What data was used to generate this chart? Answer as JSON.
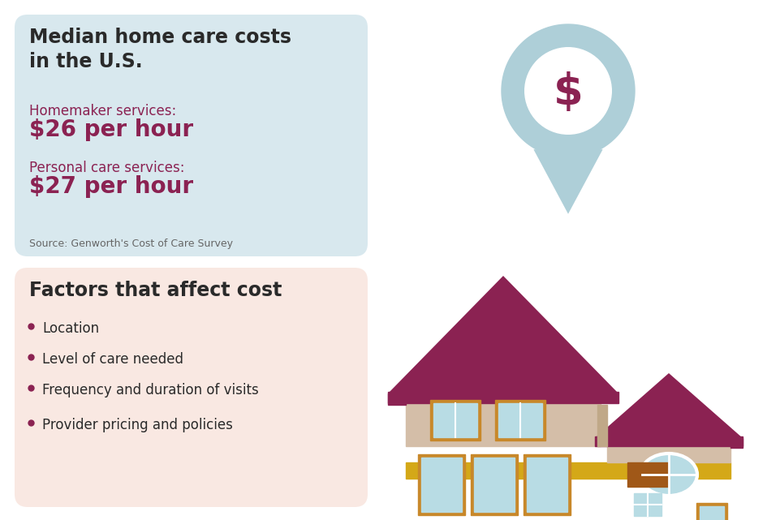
{
  "bg_color": "#ffffff",
  "top_box_color": "#d8e8ee",
  "bottom_box_color": "#f9e8e2",
  "title_text": "Median home care costs\nin the U.S.",
  "title_color": "#2a2a2a",
  "title_fontsize": 17,
  "label1": "Homemaker services:",
  "value1": "$26 per hour",
  "label2": "Personal care services:",
  "value2": "$27 per hour",
  "label_color": "#8b2252",
  "value_color": "#8b2252",
  "label_fontsize": 12,
  "value_fontsize": 20,
  "source_text": "Source: Genworth's Cost of Care Survey",
  "source_color": "#666666",
  "source_fontsize": 9,
  "factors_title": "Factors that affect cost",
  "factors_title_color": "#2a2a2a",
  "factors_title_fontsize": 17,
  "factors": [
    "Location",
    "Level of care needed",
    "Frequency and duration of visits",
    "Provider pricing and policies"
  ],
  "factors_color": "#2a2a2a",
  "factors_fontsize": 12,
  "bullet_color": "#8b2252",
  "pin_color": "#aecfd8",
  "pin_circle_color": "#ffffff",
  "dollar_color": "#8b2252",
  "house_wall_color": "#d4bea8",
  "house_wall2_color": "#c8b098",
  "house_roof_color": "#8b2252",
  "house_window_color": "#b8dce4",
  "house_window_frame_color": "#c8882a",
  "house_door_color": "#a05818",
  "house_foundation_color": "#d4a818",
  "house_accent_color": "#c0a888"
}
